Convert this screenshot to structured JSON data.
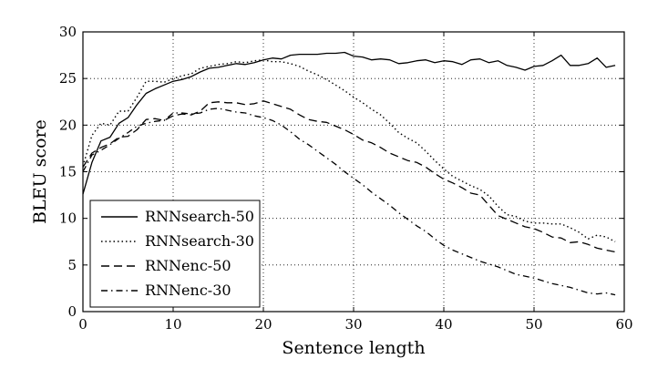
{
  "chart_data": {
    "type": "line",
    "title": "",
    "xlabel": "Sentence length",
    "ylabel": "BLEU score",
    "xlim": [
      0,
      60
    ],
    "ylim": [
      0,
      30
    ],
    "xticks": [
      0,
      10,
      20,
      30,
      40,
      50,
      60
    ],
    "yticks": [
      0,
      5,
      10,
      15,
      20,
      25,
      30
    ],
    "grid": true,
    "legend_position": "bottom-left",
    "series": [
      {
        "name": "RNNsearch-50",
        "style": "solid",
        "x": [
          0,
          1,
          2,
          3,
          4,
          5,
          6,
          7,
          8,
          9,
          10,
          11,
          12,
          13,
          14,
          15,
          16,
          17,
          18,
          19,
          20,
          21,
          22,
          23,
          24,
          25,
          26,
          27,
          28,
          29,
          30,
          31,
          32,
          33,
          34,
          35,
          36,
          37,
          38,
          39,
          40,
          41,
          42,
          43,
          44,
          45,
          46,
          47,
          48,
          49,
          50,
          51,
          52,
          53,
          54,
          55,
          56,
          57,
          58,
          59
        ],
        "values": [
          12.6,
          16.0,
          18.3,
          18.7,
          20.2,
          20.8,
          22.2,
          23.4,
          23.9,
          24.3,
          24.7,
          24.9,
          25.2,
          25.7,
          26.1,
          26.2,
          26.4,
          26.6,
          26.5,
          26.7,
          27.0,
          27.2,
          27.1,
          27.5,
          27.6,
          27.6,
          27.6,
          27.7,
          27.7,
          27.8,
          27.4,
          27.3,
          27.0,
          27.1,
          27.0,
          26.6,
          26.7,
          26.9,
          27.0,
          26.7,
          26.9,
          26.8,
          26.5,
          27.0,
          27.1,
          26.7,
          26.9,
          26.4,
          26.2,
          25.9,
          26.3,
          26.4,
          26.9,
          27.5,
          26.4,
          26.4,
          26.6,
          27.2,
          26.2,
          26.4
        ]
      },
      {
        "name": "RNNsearch-30",
        "style": "dotted",
        "x": [
          0,
          1,
          2,
          3,
          4,
          5,
          6,
          7,
          8,
          9,
          10,
          11,
          12,
          13,
          14,
          15,
          16,
          17,
          18,
          19,
          20,
          21,
          22,
          23,
          24,
          25,
          26,
          27,
          28,
          29,
          30,
          31,
          32,
          33,
          34,
          35,
          36,
          37,
          38,
          39,
          40,
          41,
          42,
          43,
          44,
          45,
          46,
          47,
          48,
          49,
          50,
          51,
          52,
          53,
          54,
          55,
          56,
          57,
          58,
          59
        ],
        "values": [
          15.6,
          18.9,
          20.2,
          20.0,
          21.5,
          21.5,
          23.0,
          24.7,
          24.7,
          24.6,
          25.0,
          25.3,
          25.5,
          26.1,
          26.3,
          26.5,
          26.6,
          26.8,
          26.7,
          26.9,
          27.0,
          26.8,
          26.8,
          26.6,
          26.3,
          25.8,
          25.4,
          24.9,
          24.3,
          23.7,
          23.0,
          22.4,
          21.7,
          21.1,
          20.2,
          19.2,
          18.6,
          18.1,
          17.2,
          16.2,
          15.3,
          14.5,
          14.0,
          13.5,
          13.1,
          12.4,
          11.3,
          10.4,
          10.2,
          9.7,
          9.5,
          9.5,
          9.4,
          9.4,
          9.0,
          8.5,
          7.8,
          8.2,
          8.0,
          7.5
        ]
      },
      {
        "name": "RNNenc-50",
        "style": "dashed",
        "x": [
          0,
          1,
          2,
          3,
          4,
          5,
          6,
          7,
          8,
          9,
          10,
          11,
          12,
          13,
          14,
          15,
          16,
          17,
          18,
          19,
          20,
          21,
          22,
          23,
          24,
          25,
          26,
          27,
          28,
          29,
          30,
          31,
          32,
          33,
          34,
          35,
          36,
          37,
          38,
          39,
          40,
          41,
          42,
          43,
          44,
          45,
          46,
          47,
          48,
          49,
          50,
          51,
          52,
          53,
          54,
          55,
          56,
          57,
          58,
          59
        ],
        "values": [
          15.5,
          17.0,
          17.6,
          18.0,
          18.7,
          18.8,
          19.5,
          20.6,
          20.7,
          20.5,
          21.0,
          21.2,
          21.1,
          21.5,
          22.4,
          22.5,
          22.4,
          22.4,
          22.2,
          22.3,
          22.6,
          22.3,
          22.0,
          21.7,
          21.1,
          20.6,
          20.4,
          20.3,
          19.9,
          19.5,
          19.0,
          18.4,
          18.1,
          17.6,
          17.0,
          16.6,
          16.2,
          16.0,
          15.5,
          14.8,
          14.2,
          13.8,
          13.3,
          12.7,
          12.5,
          11.4,
          10.3,
          9.9,
          9.5,
          9.1,
          8.9,
          8.5,
          8.0,
          7.9,
          7.4,
          7.5,
          7.2,
          6.8,
          6.6,
          6.4
        ]
      },
      {
        "name": "RNNenc-30",
        "style": "dashdot",
        "x": [
          0,
          1,
          2,
          3,
          4,
          5,
          6,
          7,
          8,
          9,
          10,
          11,
          12,
          13,
          14,
          15,
          16,
          17,
          18,
          19,
          20,
          21,
          22,
          23,
          24,
          25,
          26,
          27,
          28,
          29,
          30,
          31,
          32,
          33,
          34,
          35,
          36,
          37,
          38,
          39,
          40,
          41,
          42,
          43,
          44,
          45,
          46,
          47,
          48,
          49,
          50,
          51,
          52,
          53,
          54,
          55,
          56,
          57,
          58,
          59
        ],
        "values": [
          15.0,
          16.8,
          17.3,
          17.9,
          18.6,
          19.2,
          19.9,
          20.2,
          20.4,
          20.5,
          21.3,
          21.3,
          21.2,
          21.3,
          21.7,
          21.8,
          21.6,
          21.4,
          21.3,
          21.0,
          20.8,
          20.5,
          20.0,
          19.3,
          18.5,
          17.9,
          17.2,
          16.5,
          15.8,
          15.0,
          14.3,
          13.6,
          12.8,
          12.1,
          11.4,
          10.6,
          9.9,
          9.2,
          8.6,
          7.8,
          7.1,
          6.6,
          6.2,
          5.8,
          5.4,
          5.1,
          4.8,
          4.4,
          4.0,
          3.8,
          3.6,
          3.3,
          3.0,
          2.8,
          2.6,
          2.3,
          2.0,
          1.9,
          2.0,
          1.8
        ]
      }
    ]
  }
}
